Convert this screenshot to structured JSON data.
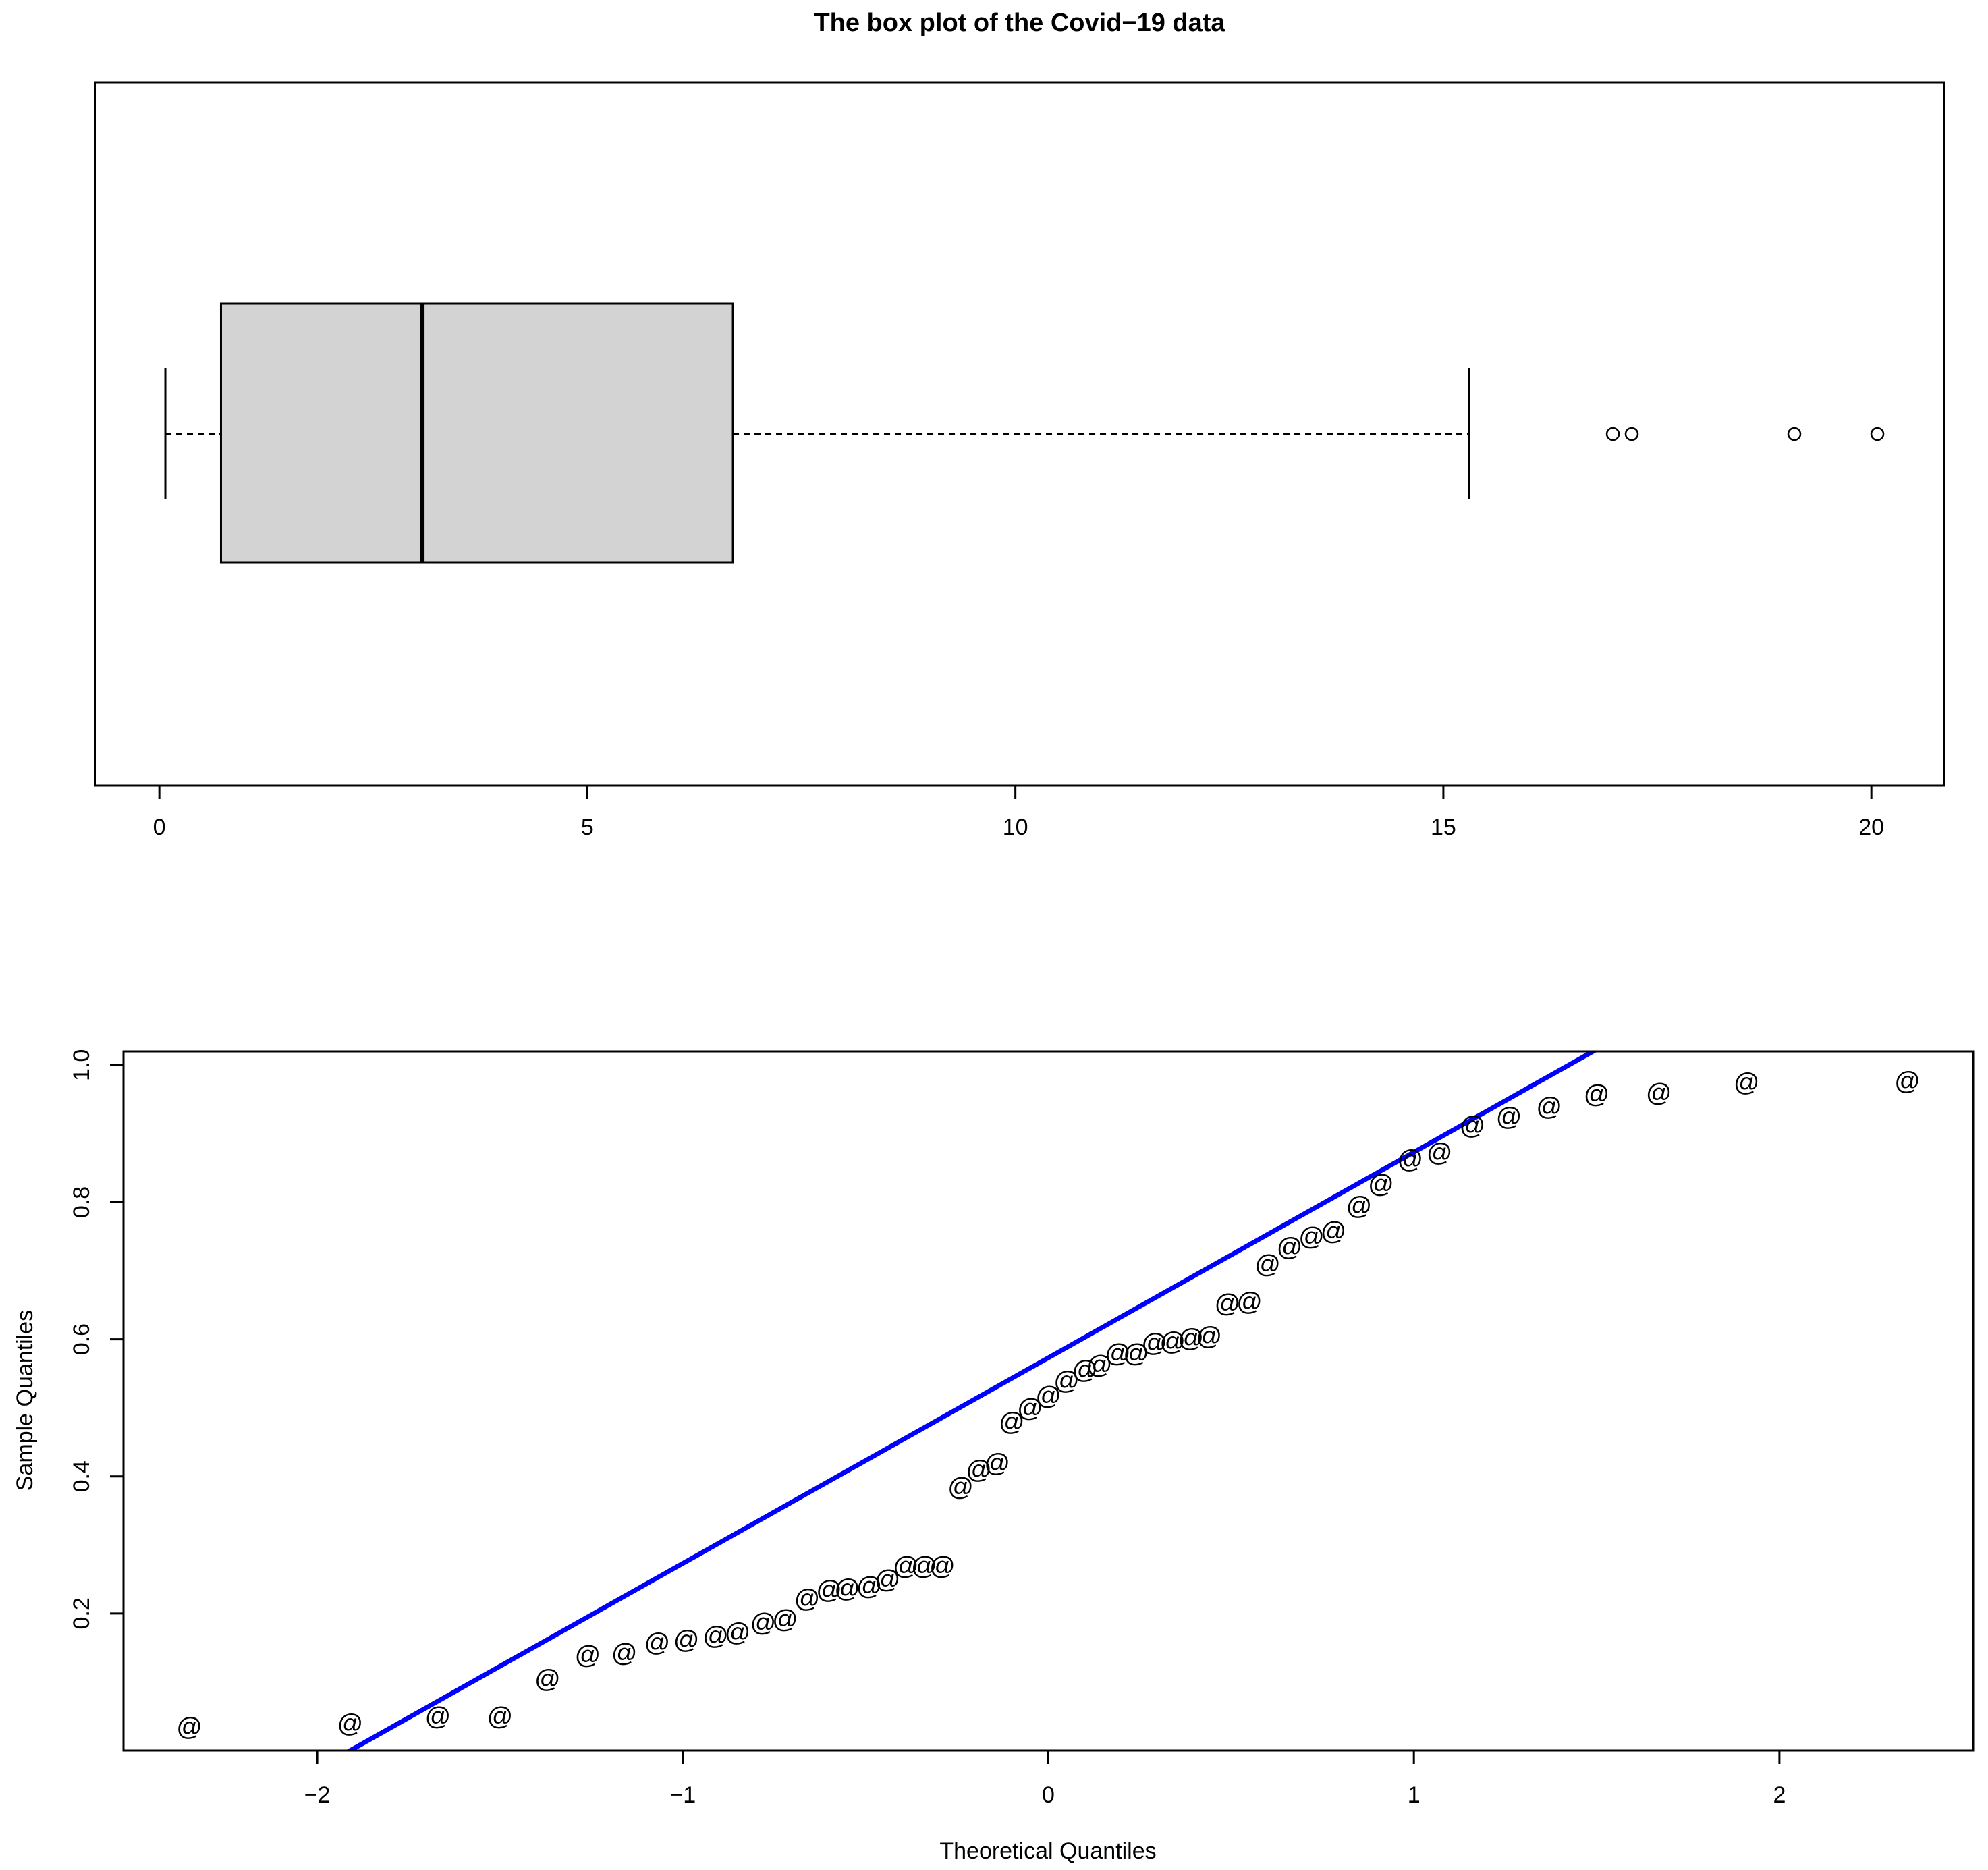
{
  "chart_data": [
    {
      "type": "box",
      "title": "The box plot of the Covid−19 data",
      "xlabel": "",
      "ylabel": "",
      "orientation": "horizontal",
      "xlim": [
        -0.75,
        20.85
      ],
      "ticks": [
        0,
        5,
        10,
        15,
        20
      ],
      "tick_labels": [
        "0",
        "5",
        "10",
        "15",
        "20"
      ],
      "grid": false,
      "box": {
        "whisker_low": 0.07,
        "q1": 0.72,
        "median": 3.07,
        "q3": 6.7,
        "whisker_high": 15.3,
        "outliers": [
          16.98,
          17.2,
          19.1,
          20.07
        ]
      },
      "box_fill": "#d3d3d3"
    },
    {
      "type": "scatter",
      "title": "",
      "xlabel": "Theoretical Quantiles",
      "ylabel": "Sample Quantiles",
      "xlim": [
        -2.53,
        2.53
      ],
      "ylim": [
        0.0,
        1.02
      ],
      "x_ticks": [
        -2,
        -1,
        0,
        1,
        2
      ],
      "x_tick_labels": [
        "−2",
        "−1",
        "0",
        "1",
        "2"
      ],
      "y_ticks": [
        0.2,
        0.4,
        0.6,
        0.8,
        1.0
      ],
      "y_tick_labels": [
        "0.2",
        "0.4",
        "0.6",
        "0.8",
        "1.0"
      ],
      "grid": false,
      "marker": "@",
      "points": [
        [
          -2.35,
          0.035
        ],
        [
          -1.91,
          0.04
        ],
        [
          -1.67,
          0.05
        ],
        [
          -1.5,
          0.05
        ],
        [
          -1.37,
          0.105
        ],
        [
          -1.26,
          0.14
        ],
        [
          -1.16,
          0.143
        ],
        [
          -1.07,
          0.158
        ],
        [
          -0.99,
          0.162
        ],
        [
          -0.91,
          0.168
        ],
        [
          -0.85,
          0.173
        ],
        [
          -0.78,
          0.187
        ],
        [
          -0.72,
          0.192
        ],
        [
          -0.66,
          0.222
        ],
        [
          -0.6,
          0.235
        ],
        [
          -0.55,
          0.237
        ],
        [
          -0.49,
          0.24
        ],
        [
          -0.44,
          0.25
        ],
        [
          -0.39,
          0.27
        ],
        [
          -0.34,
          0.27
        ],
        [
          -0.29,
          0.27
        ],
        [
          -0.24,
          0.385
        ],
        [
          -0.19,
          0.41
        ],
        [
          -0.14,
          0.42
        ],
        [
          -0.1,
          0.48
        ],
        [
          -0.05,
          0.5
        ],
        [
          0.0,
          0.518
        ],
        [
          0.05,
          0.54
        ],
        [
          0.1,
          0.556
        ],
        [
          0.14,
          0.563
        ],
        [
          0.19,
          0.58
        ],
        [
          0.24,
          0.58
        ],
        [
          0.29,
          0.595
        ],
        [
          0.34,
          0.597
        ],
        [
          0.39,
          0.602
        ],
        [
          0.44,
          0.605
        ],
        [
          0.49,
          0.653
        ],
        [
          0.55,
          0.655
        ],
        [
          0.6,
          0.71
        ],
        [
          0.66,
          0.735
        ],
        [
          0.72,
          0.75
        ],
        [
          0.78,
          0.758
        ],
        [
          0.85,
          0.795
        ],
        [
          0.91,
          0.827
        ],
        [
          0.99,
          0.863
        ],
        [
          1.07,
          0.873
        ],
        [
          1.16,
          0.912
        ],
        [
          1.26,
          0.925
        ],
        [
          1.37,
          0.94
        ],
        [
          1.5,
          0.958
        ],
        [
          1.67,
          0.96
        ],
        [
          1.91,
          0.975
        ],
        [
          2.35,
          0.977
        ]
      ],
      "reference_line": {
        "slope": 0.3,
        "intercept": 0.573,
        "color": "#0000ff"
      }
    }
  ]
}
